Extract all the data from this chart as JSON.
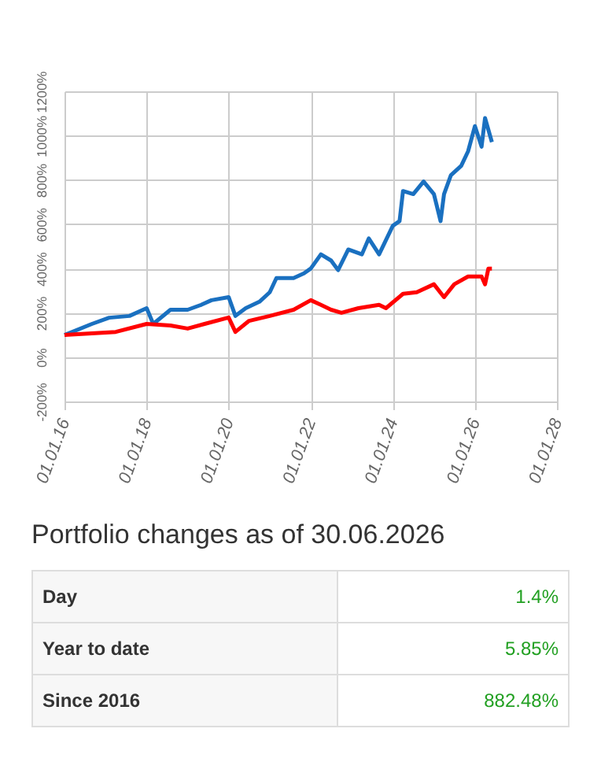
{
  "chart_data": [
    {
      "type": "line",
      "xlim": [
        "2016-01-01",
        "2028-01-01"
      ],
      "ylim": [
        -200,
        1200
      ],
      "xticks": [
        {
          "value": "2016-01-01",
          "label": "01.01.16"
        },
        {
          "value": "2018-01-01",
          "label": "01.01.18"
        },
        {
          "value": "2020-01-01",
          "label": "01.01.20"
        },
        {
          "value": "2022-01-01",
          "label": "01.01.22"
        },
        {
          "value": "2024-01-01",
          "label": "01.01.24"
        },
        {
          "value": "2026-01-01",
          "label": "01.01.26"
        },
        {
          "value": "2028-01-01",
          "label": "01.01.28"
        }
      ],
      "yticks": [
        {
          "value": -200,
          "label": "-200%"
        },
        {
          "value": 0,
          "label": "0%"
        },
        {
          "value": 200,
          "label": "200%"
        },
        {
          "value": 400,
          "label": "400%"
        },
        {
          "value": 600,
          "label": "600%"
        },
        {
          "value": 800,
          "label": "800%"
        },
        {
          "value": 1000,
          "label": "1000%"
        },
        {
          "value": 1200,
          "label": "1200%"
        }
      ],
      "grid": true,
      "marker": "none",
      "line_style": "solid",
      "series": [
        {
          "color": "#1a70c0",
          "x": [
            "2016-01",
            "2016-09",
            "2017-02",
            "2017-08",
            "2018-01",
            "2018-03",
            "2018-08",
            "2019-01",
            "2019-05",
            "2019-08",
            "2020-01",
            "2020-03",
            "2020-06",
            "2020-10",
            "2021-01",
            "2021-03",
            "2021-08",
            "2021-11",
            "2022-01",
            "2022-04",
            "2022-07",
            "2022-09",
            "2022-12",
            "2023-04",
            "2023-06",
            "2023-09",
            "2024-01",
            "2024-03",
            "2024-04",
            "2024-07",
            "2024-10",
            "2025-01",
            "2025-03",
            "2025-04",
            "2025-06",
            "2025-09",
            "2025-11",
            "2026-01",
            "2026-03",
            "2026-04",
            "2026-06"
          ],
          "values": [
            100,
            150,
            178,
            186,
            221,
            150,
            214,
            214,
            236,
            257,
            271,
            186,
            221,
            250,
            293,
            357,
            357,
            378,
            400,
            464,
            436,
            393,
            486,
            464,
            536,
            464,
            593,
            614,
            750,
            736,
            793,
            736,
            614,
            736,
            821,
            864,
            929,
            1043,
            950,
            1079,
            971
          ]
        },
        {
          "color": "#ff0000",
          "x": [
            "2016-01",
            "2017-04",
            "2018-01",
            "2018-08",
            "2019-01",
            "2019-06",
            "2020-01",
            "2020-03",
            "2020-07",
            "2021-01",
            "2021-08",
            "2022-01",
            "2022-04",
            "2022-07",
            "2022-10",
            "2023-03",
            "2023-09",
            "2023-11",
            "2024-04",
            "2024-08",
            "2025-01",
            "2025-04",
            "2025-07",
            "2025-11",
            "2026-03",
            "2026-04",
            "2026-05",
            "2026-06"
          ],
          "values": [
            100,
            114,
            150,
            143,
            129,
            150,
            179,
            114,
            164,
            186,
            214,
            257,
            236,
            214,
            200,
            221,
            236,
            221,
            286,
            293,
            329,
            271,
            329,
            364,
            364,
            329,
            400,
            400
          ]
        }
      ]
    },
    {
      "type": "other",
      "title": "Portfolio changes as of 30.06.2026",
      "categories": [
        "Day",
        "Year to date",
        "Since 2016"
      ],
      "value_labels": [
        "1.4%",
        "5.85%",
        "882.48%"
      ],
      "color": "#22a022"
    }
  ]
}
